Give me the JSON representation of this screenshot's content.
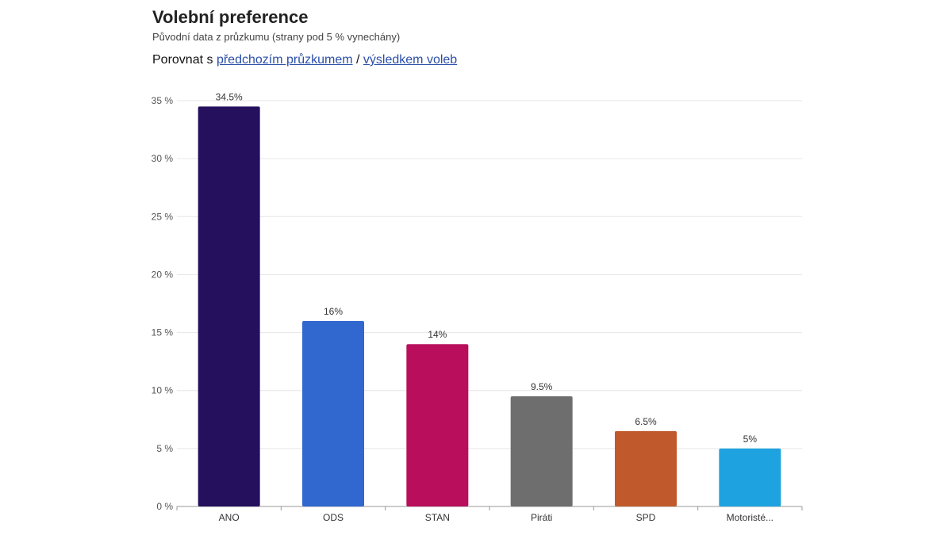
{
  "header": {
    "title": "Volební preference",
    "subtitle": "Původní data z průzkumu (strany pod 5 % vynechány)",
    "compare_prefix": "Porovnat s",
    "compare_link_previous": "předchozím průzkumem",
    "compare_separator": "/",
    "compare_link_election": "výsledkem voleb"
  },
  "chart_data": {
    "type": "bar",
    "title": "Volební preference",
    "subtitle": "Původní data z průzkumu (strany pod 5 % vynechány)",
    "xlabel": "",
    "ylabel": "",
    "ylim": [
      0,
      35
    ],
    "yticks": [
      0,
      5,
      10,
      15,
      20,
      25,
      30,
      35
    ],
    "ytick_labels": [
      "0 %",
      "5 %",
      "10 %",
      "15 %",
      "20 %",
      "25 %",
      "30 %",
      "35 %"
    ],
    "categories": [
      "ANO",
      "ODS",
      "STAN",
      "Piráti",
      "SPD",
      "Motoristé..."
    ],
    "values": [
      34.5,
      16,
      14,
      9.5,
      6.5,
      5
    ],
    "data_labels": [
      "34.5%",
      "16%",
      "14%",
      "9.5%",
      "6.5%",
      "5%"
    ],
    "colors": [
      "#25105e",
      "#3168d0",
      "#b80e5c",
      "#6e6e6e",
      "#c05a2c",
      "#1ea3e0"
    ],
    "grid": true,
    "legend": "none"
  }
}
